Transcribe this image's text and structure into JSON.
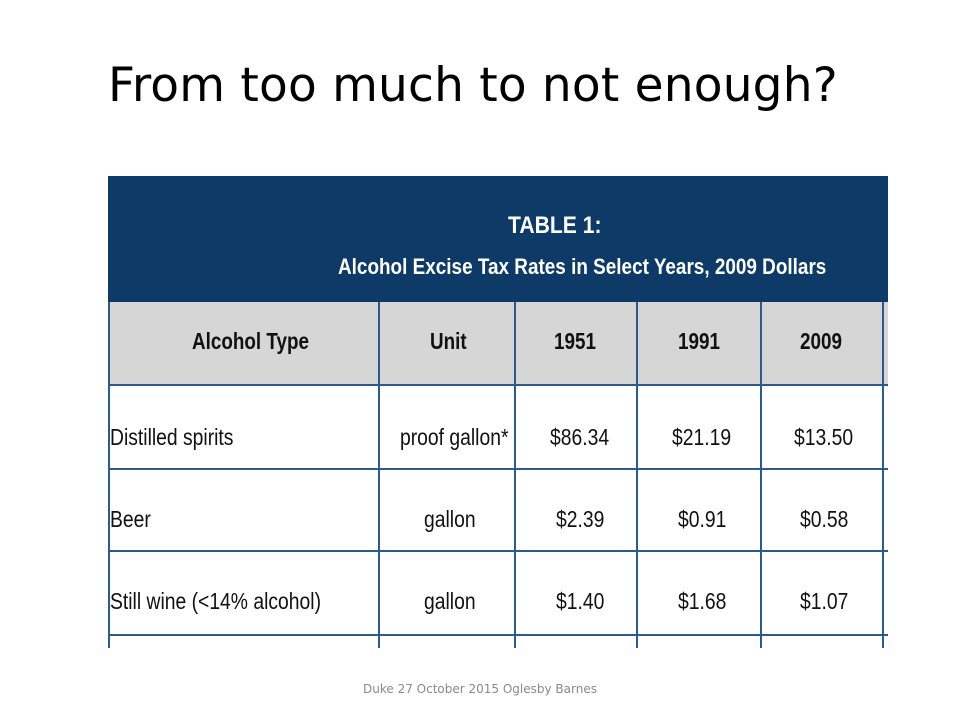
{
  "slide": {
    "title": "From too much to not enough?",
    "footer": "Duke 27 October 2015 Oglesby Barnes"
  },
  "table": {
    "title_line1": "TABLE 1:",
    "title_line2": "Alcohol Excise Tax Rates in Select Years, 2009 Dollars",
    "columns": [
      "Alcohol Type",
      "Unit",
      "1951",
      "1991",
      "2009"
    ],
    "rows": [
      [
        "Distilled spirits",
        "proof gallon*",
        "$86.34",
        "$21.19",
        "$13.50"
      ],
      [
        "Beer",
        "gallon",
        "$2.39",
        "$0.91",
        "$0.58"
      ],
      [
        "Still wine (<14% alcohol)",
        "gallon",
        "$1.40",
        "$1.68",
        "$1.07"
      ]
    ],
    "colors": {
      "header_bg": "#0d3a66",
      "column_header_bg": "#d6d6d6",
      "grid_lines": "#2d5a8a"
    }
  }
}
